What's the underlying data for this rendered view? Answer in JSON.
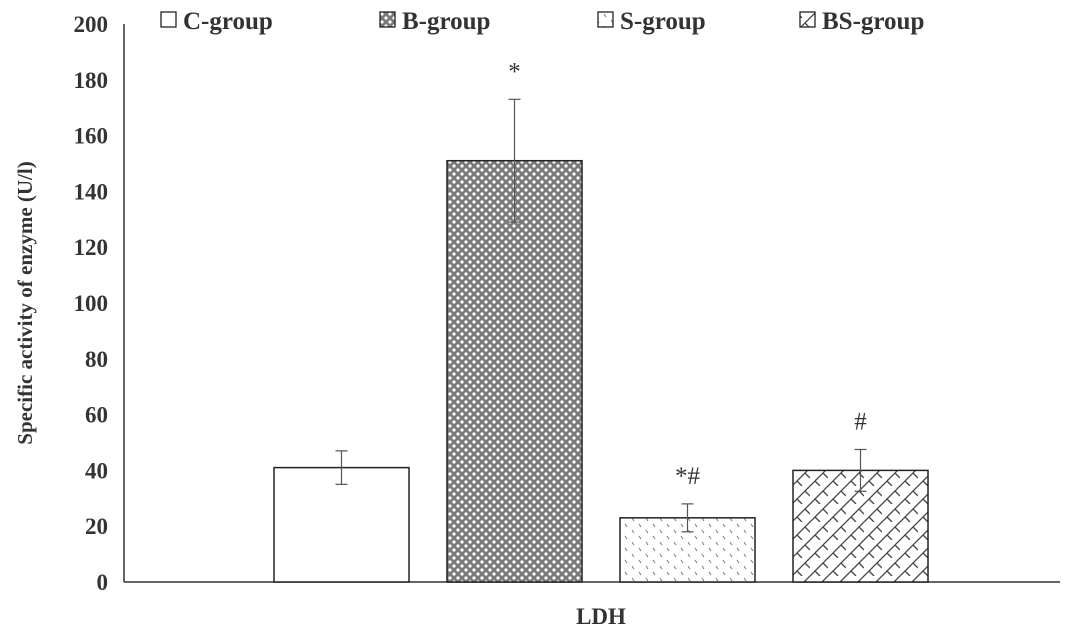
{
  "chart_data": {
    "type": "bar",
    "title": "",
    "xlabel": "LDH",
    "ylabel": "Specific activity of enzyme (U/l)",
    "ylim": [
      0,
      200
    ],
    "yticks": [
      0,
      20,
      40,
      60,
      80,
      100,
      120,
      140,
      160,
      180,
      200
    ],
    "categories": [
      "LDH"
    ],
    "series": [
      {
        "name": "C-group",
        "values": [
          41
        ],
        "error": [
          6
        ],
        "significance": "",
        "pattern": "plain"
      },
      {
        "name": "B-group",
        "values": [
          151
        ],
        "error": [
          22
        ],
        "significance": "*",
        "pattern": "dots"
      },
      {
        "name": "S-group",
        "values": [
          23
        ],
        "error": [
          5
        ],
        "significance": "*#",
        "pattern": "dashes"
      },
      {
        "name": "BS-group",
        "values": [
          40
        ],
        "error": [
          7.5
        ],
        "significance": "#",
        "pattern": "brick"
      }
    ],
    "grid": false,
    "legend_position": "top"
  }
}
